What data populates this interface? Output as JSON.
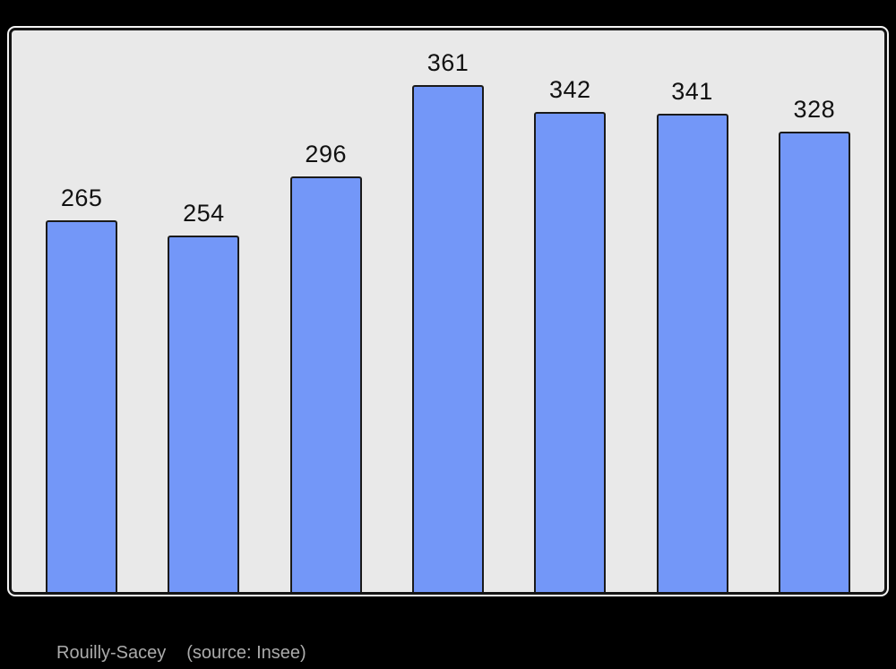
{
  "page": {
    "background": "#000000"
  },
  "chart_data": {
    "type": "bar",
    "values": [
      265,
      254,
      296,
      361,
      342,
      341,
      328
    ],
    "title": "",
    "xlabel": "",
    "ylabel": "",
    "ylim": [
      0,
      400
    ],
    "grid": false,
    "legend": null,
    "x_tick_labels_visible": false,
    "value_labels_visible": true,
    "bar_color": "#7397F8",
    "bar_border_color": "#1A1A1A",
    "plot_background": "#E9E9E9",
    "plot_border_color": "#141414",
    "value_label_color": "#111111"
  },
  "caption": {
    "title": "Rouilly-Sacey",
    "source": "(source: Insee)",
    "color": "#ABABAB"
  }
}
